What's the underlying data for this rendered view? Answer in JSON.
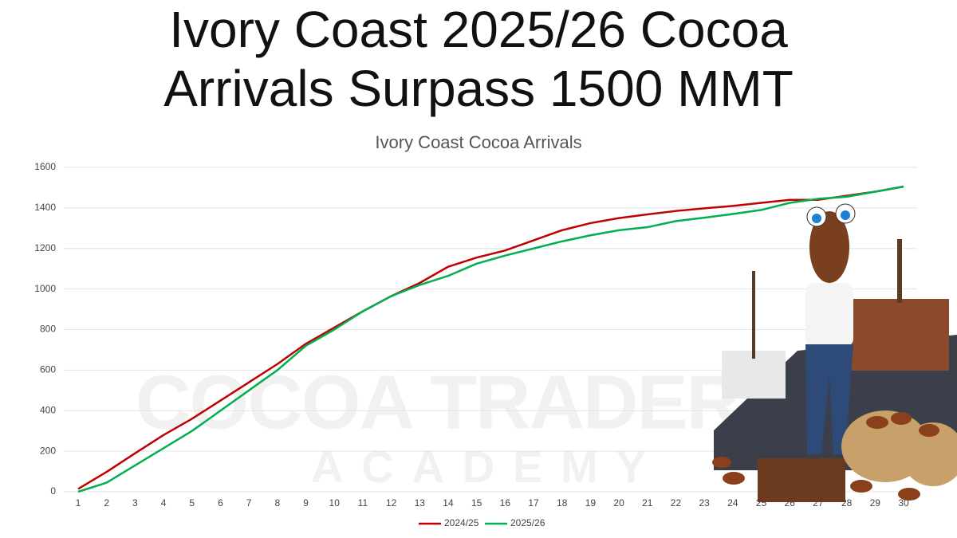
{
  "chart_data": {
    "type": "line",
    "title": "Ivory Coast 2025/26 Cocoa Arrivals Surpass 1500 MMT",
    "subtitle": "Ivory Coast Cocoa Arrivals",
    "x": [
      1,
      2,
      3,
      4,
      5,
      6,
      7,
      8,
      9,
      10,
      11,
      12,
      13,
      14,
      15,
      16,
      17,
      18,
      19,
      20,
      21,
      22,
      23,
      24,
      25,
      26,
      27,
      28,
      29,
      30
    ],
    "series": [
      {
        "name": "2024/25",
        "color": "#c00000",
        "values": [
          14,
          98,
          190,
          280,
          360,
          450,
          540,
          630,
          730,
          810,
          890,
          965,
          1030,
          1110,
          1155,
          1190,
          1240,
          1290,
          1325,
          1350,
          1368,
          1385,
          1398,
          1410,
          1425,
          1440,
          1440,
          1460,
          1480,
          1505
        ]
      },
      {
        "name": "2025/26",
        "color": "#00b050",
        "values": [
          0,
          45,
          130,
          215,
          300,
          400,
          500,
          600,
          720,
          800,
          890,
          965,
          1020,
          1065,
          1125,
          1165,
          1200,
          1235,
          1265,
          1290,
          1305,
          1335,
          1352,
          1370,
          1390,
          1425,
          1445,
          1455,
          1480,
          1505
        ]
      }
    ],
    "ylim": [
      0,
      1600
    ],
    "yticks": [
      0,
      200,
      400,
      600,
      800,
      1000,
      1200,
      1400,
      1600
    ],
    "grid": true,
    "legend": "bottom"
  },
  "watermark": {
    "line1": "COCOA TRADER",
    "line2": "ACADEMY"
  }
}
